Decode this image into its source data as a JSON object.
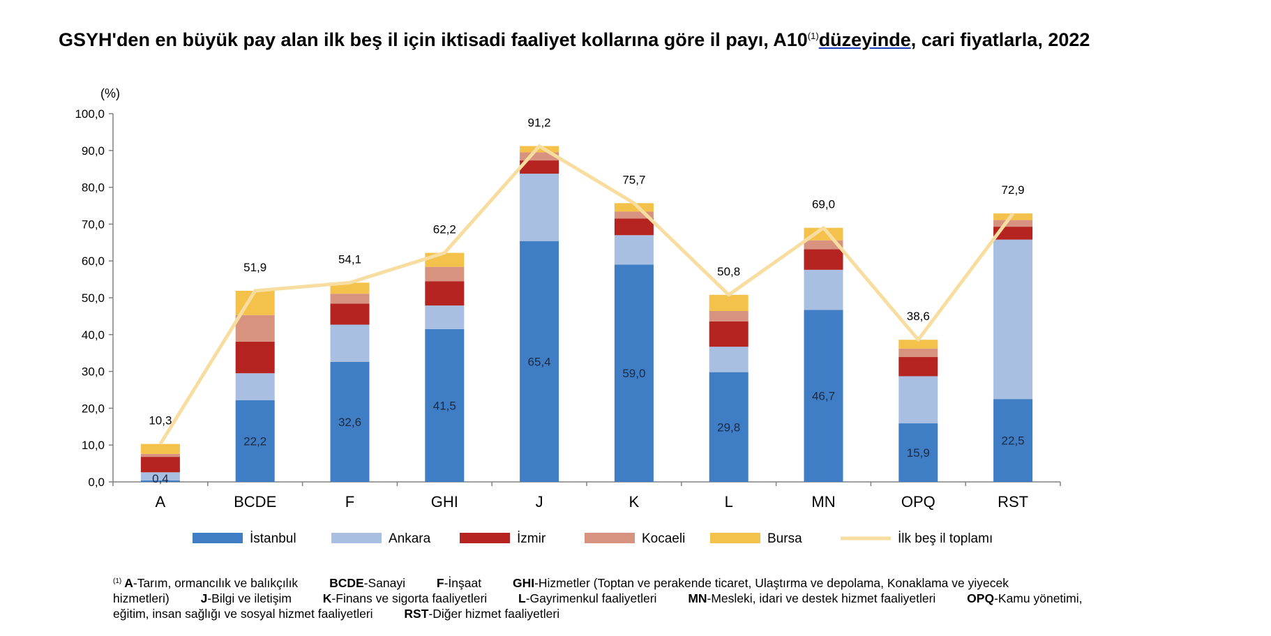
{
  "title": {
    "text_before": "GSYH'den en büyük pay alan ilk beş il için iktisadi faaliyet kollarına göre il payı, A10",
    "marker": "(1)",
    "text_underlined": "düzeyinde",
    "text_after": ", cari fiyatlarla, 2022"
  },
  "chart_data": {
    "type": "bar",
    "stacked": true,
    "unit_label": "(%)",
    "categories": [
      "A",
      "BCDE",
      "F",
      "GHI",
      "J",
      "K",
      "L",
      "MN",
      "OPQ",
      "RST"
    ],
    "ylim": [
      0,
      100
    ],
    "yticks": [
      "0,0",
      "10,0",
      "20,0",
      "30,0",
      "40,0",
      "50,0",
      "60,0",
      "70,0",
      "80,0",
      "90,0",
      "100,0"
    ],
    "grid": false,
    "legend_position": "bottom",
    "series": [
      {
        "name": "İstanbul",
        "color": "#3f7dc4",
        "values": [
          0.4,
          22.2,
          32.6,
          41.5,
          65.4,
          59.0,
          29.8,
          46.7,
          15.9,
          22.5
        ],
        "labels": [
          "0,4",
          "22,2",
          "32,6",
          "41,5",
          "65,4",
          "59,0",
          "29,8",
          "46,7",
          "15,9",
          "22,5"
        ]
      },
      {
        "name": "Ankara",
        "color": "#a9bfe2",
        "values": [
          2.2,
          7.3,
          10.1,
          6.4,
          18.3,
          8.0,
          6.9,
          10.9,
          12.8,
          43.3
        ]
      },
      {
        "name": "İzmir",
        "color": "#b52420",
        "values": [
          4.2,
          8.6,
          5.7,
          6.6,
          3.6,
          4.5,
          6.9,
          5.6,
          5.2,
          3.5
        ]
      },
      {
        "name": "Kocaeli",
        "color": "#d7937f",
        "values": [
          0.8,
          7.2,
          2.7,
          3.9,
          2.2,
          1.9,
          2.8,
          2.4,
          2.3,
          1.8
        ]
      },
      {
        "name": "Bursa",
        "color": "#f4c24a",
        "values": [
          2.7,
          6.6,
          3.0,
          3.8,
          1.7,
          2.3,
          4.4,
          3.4,
          2.4,
          1.8
        ]
      }
    ],
    "total_series": {
      "name": "İlk beş il toplamı",
      "color": "#f7dda0",
      "values": [
        10.3,
        51.9,
        54.1,
        62.2,
        91.2,
        75.7,
        50.8,
        69.0,
        38.6,
        72.9
      ],
      "labels": [
        "10,3",
        "51,9",
        "54,1",
        "62,2",
        "91,2",
        "75,7",
        "50,8",
        "69,0",
        "38,6",
        "72,9"
      ]
    }
  },
  "footnote": {
    "marker": "(1)",
    "items": [
      {
        "code": "A",
        "text": "-Tarım, ormancılık ve balıkçılık"
      },
      {
        "code": "BCDE",
        "text": "-Sanayi"
      },
      {
        "code": "F",
        "text": "-İnşaat"
      },
      {
        "code": "GHI",
        "text": "-Hizmetler (Toptan ve perakende ticaret, Ulaştırma ve depolama, Konaklama ve yiyecek hizmetleri)"
      },
      {
        "code": "J",
        "text": "-Bilgi ve iletişim"
      },
      {
        "code": "K",
        "text": "-Finans ve sigorta faaliyetleri"
      },
      {
        "code": "L",
        "text": "-Gayrimenkul faaliyetleri"
      },
      {
        "code": "MN",
        "text": "-Mesleki, idari ve destek hizmet faaliyetleri"
      },
      {
        "code": "OPQ",
        "text": "-Kamu yönetimi, eğitim, insan sağlığı ve sosyal hizmet faaliyetleri"
      },
      {
        "code": "RST",
        "text": "-Diğer hizmet faaliyetleri"
      }
    ]
  }
}
